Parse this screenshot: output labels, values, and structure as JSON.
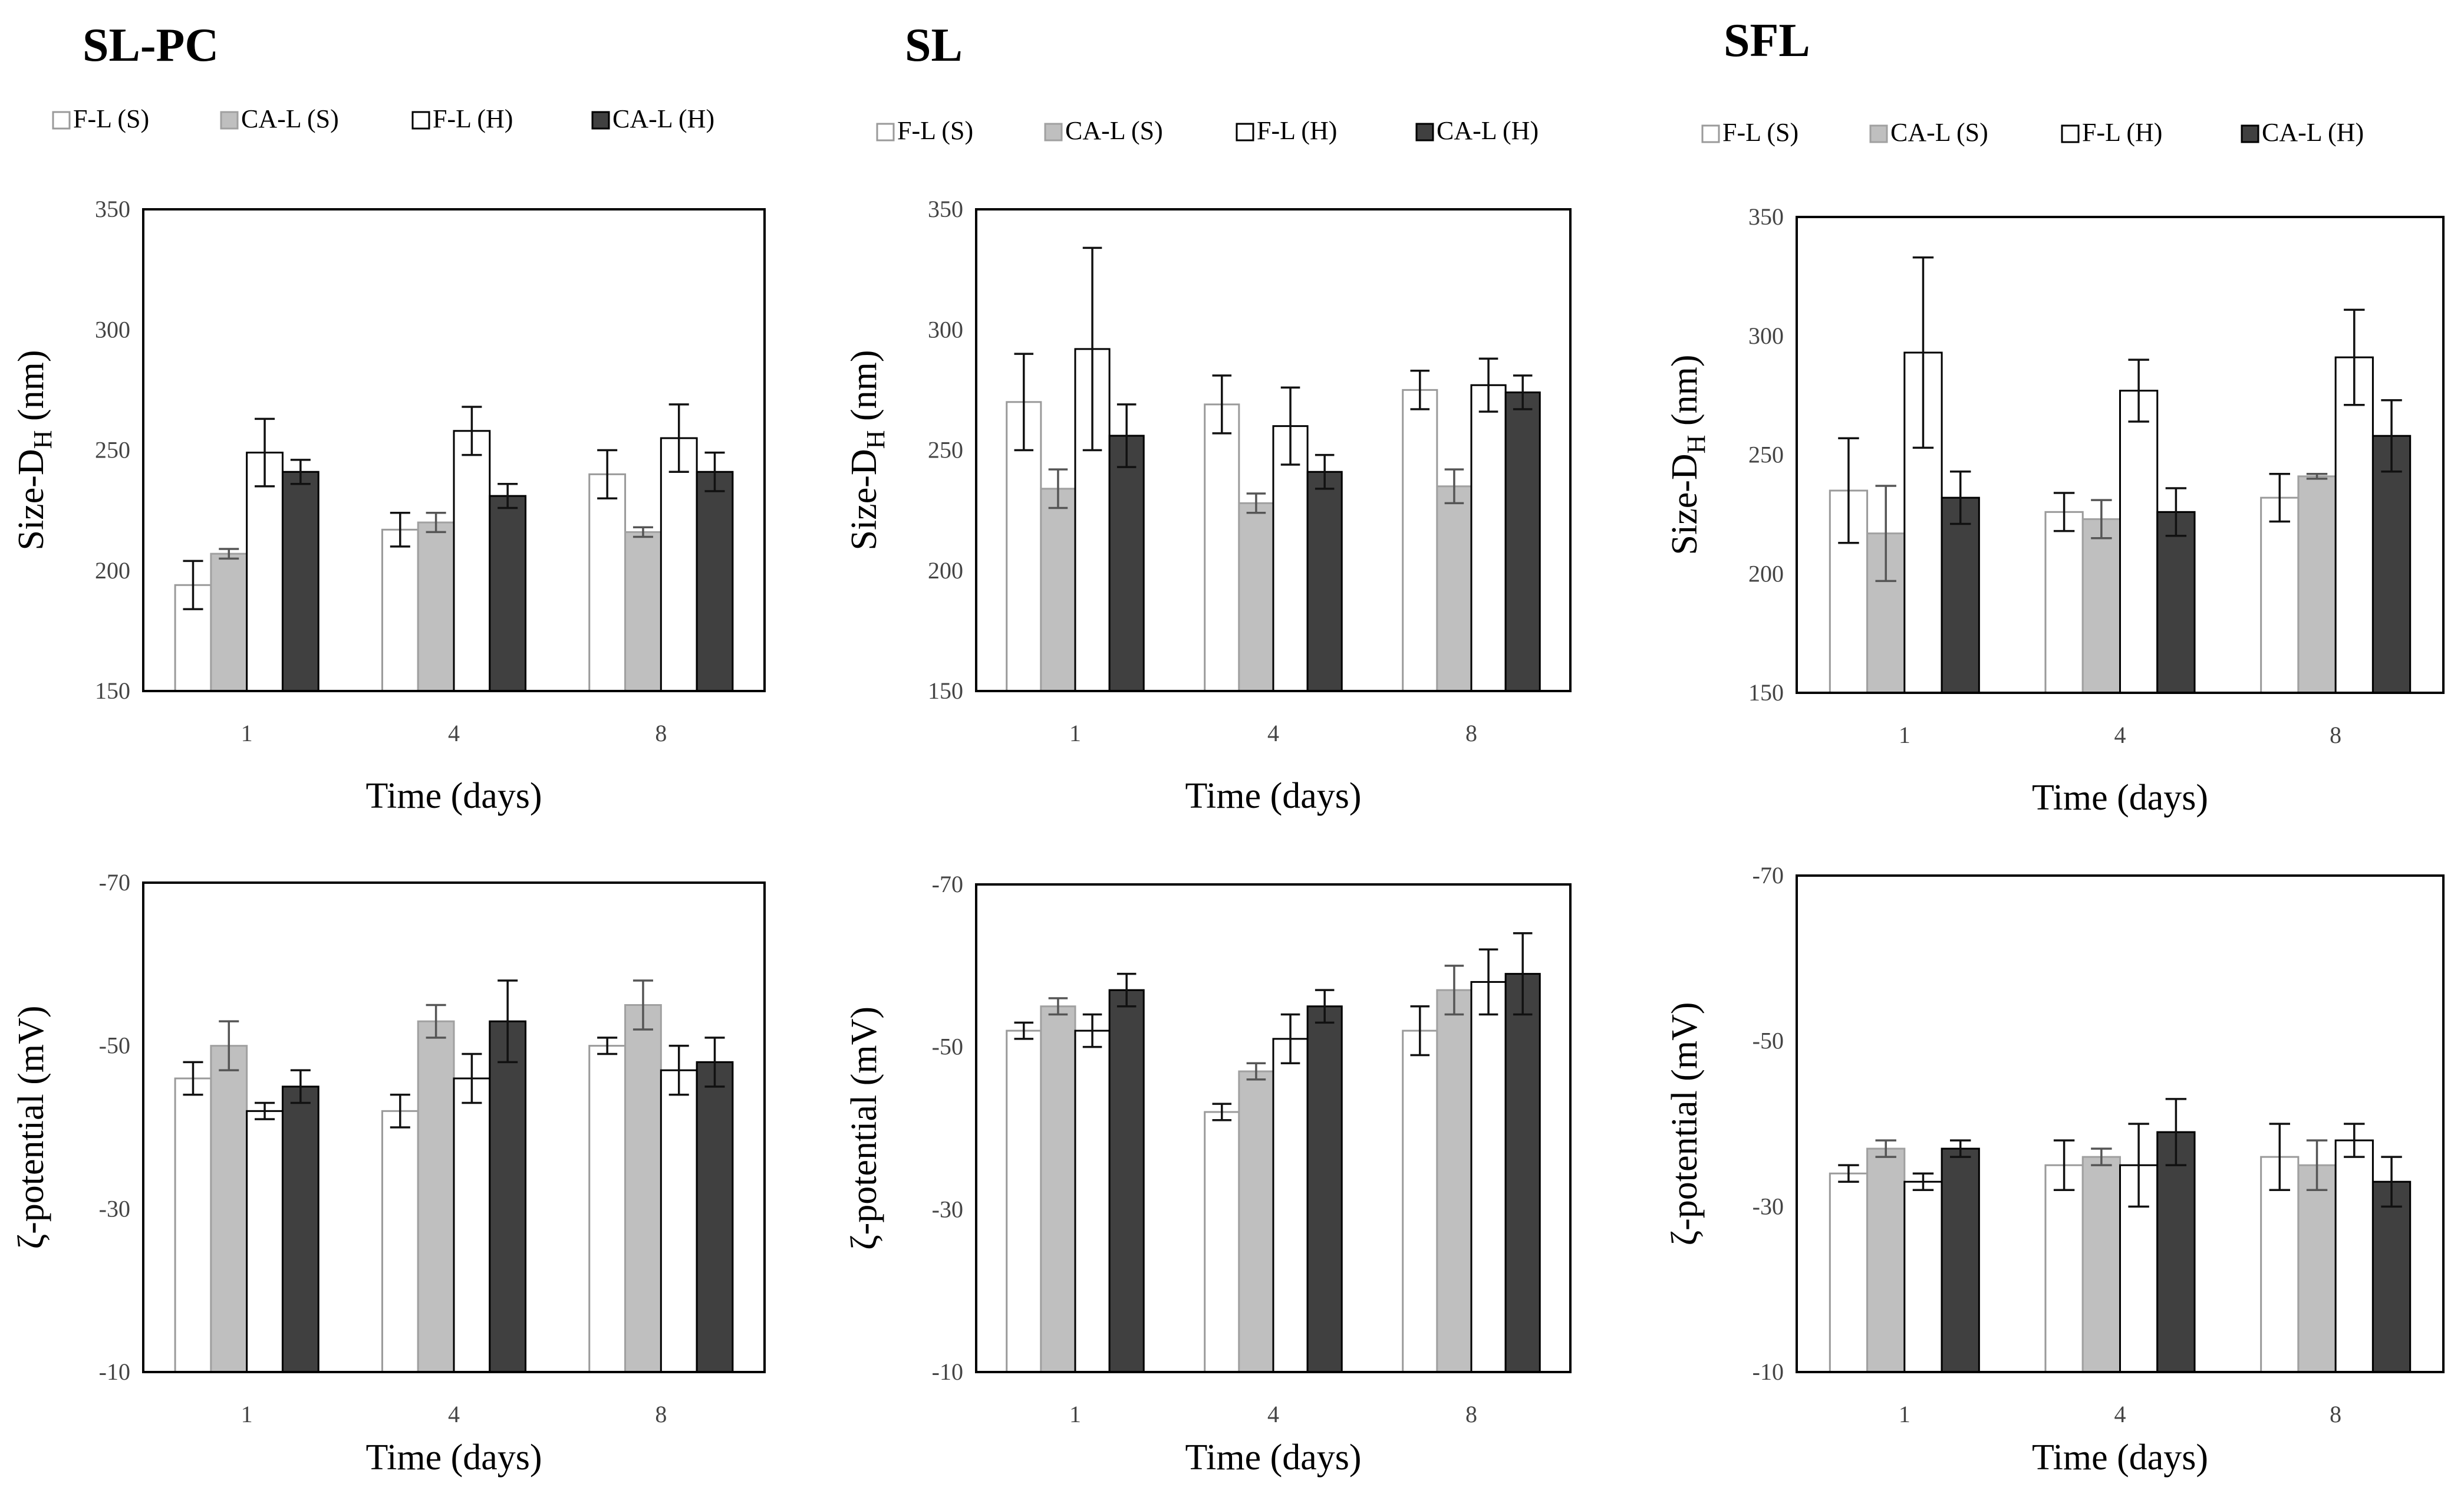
{
  "chart_data": [
    {
      "type": "bar",
      "group": "SL-PC",
      "metric": "size",
      "title": "SL-PC",
      "xlabel": "Time (days)",
      "ylabel": "Size-DH (nm)",
      "categories": [
        "1",
        "4",
        "8"
      ],
      "ylim": [
        150,
        350
      ],
      "yticks": [
        "150",
        "200",
        "250",
        "300",
        "350"
      ],
      "series": [
        {
          "name": "F-L (S)",
          "values": [
            194,
            217,
            240
          ],
          "errors": [
            10,
            7,
            10
          ]
        },
        {
          "name": "CA-L (S)",
          "values": [
            207,
            220,
            216
          ],
          "errors": [
            2,
            4,
            2
          ]
        },
        {
          "name": "F-L (H)",
          "values": [
            249,
            258,
            255
          ],
          "errors": [
            14,
            10,
            14
          ]
        },
        {
          "name": "CA-L (H)",
          "values": [
            241,
            231,
            241
          ],
          "errors": [
            5,
            5,
            8
          ]
        }
      ]
    },
    {
      "type": "bar",
      "group": "SL",
      "metric": "size",
      "title": "SL",
      "xlabel": "Time (days)",
      "ylabel": "Size-DH (nm)",
      "categories": [
        "1",
        "4",
        "8"
      ],
      "ylim": [
        150,
        350
      ],
      "yticks": [
        "150",
        "200",
        "250",
        "300",
        "350"
      ],
      "series": [
        {
          "name": "F-L (S)",
          "values": [
            270,
            269,
            275
          ],
          "errors": [
            20,
            12,
            8
          ]
        },
        {
          "name": "CA-L (S)",
          "values": [
            234,
            228,
            235
          ],
          "errors": [
            8,
            4,
            7
          ]
        },
        {
          "name": "F-L (H)",
          "values": [
            292,
            260,
            277
          ],
          "errors": [
            42,
            16,
            11
          ]
        },
        {
          "name": "CA-L (H)",
          "values": [
            256,
            241,
            274
          ],
          "errors": [
            13,
            7,
            7
          ]
        }
      ]
    },
    {
      "type": "bar",
      "group": "SFL",
      "metric": "size",
      "title": "SFL",
      "xlabel": "Time (days)",
      "ylabel": "Size-DH (nm)",
      "categories": [
        "1",
        "4",
        "8"
      ],
      "ylim": [
        150,
        350
      ],
      "yticks": [
        "150",
        "200",
        "250",
        "300",
        "350"
      ],
      "series": [
        {
          "name": "F-L (S)",
          "values": [
            235,
            226,
            232
          ],
          "errors": [
            22,
            8,
            10
          ]
        },
        {
          "name": "CA-L (S)",
          "values": [
            217,
            223,
            241
          ],
          "errors": [
            20,
            8,
            1
          ]
        },
        {
          "name": "F-L (H)",
          "values": [
            293,
            277,
            291
          ],
          "errors": [
            40,
            13,
            20
          ]
        },
        {
          "name": "CA-L (H)",
          "values": [
            232,
            226,
            258
          ],
          "errors": [
            11,
            10,
            15
          ]
        }
      ]
    },
    {
      "type": "bar",
      "group": "SL-PC",
      "metric": "zeta",
      "xlabel": "Time (days)",
      "ylabel": "ζ-potential (mV)",
      "categories": [
        "1",
        "4",
        "8"
      ],
      "ylim": [
        -10,
        -70
      ],
      "yticks": [
        "-10",
        "-30",
        "-50",
        "-70"
      ],
      "series": [
        {
          "name": "F-L (S)",
          "values": [
            -46,
            -42,
            -50
          ],
          "errors": [
            2,
            2,
            1
          ]
        },
        {
          "name": "CA-L (S)",
          "values": [
            -50,
            -53,
            -55
          ],
          "errors": [
            3,
            2,
            3
          ]
        },
        {
          "name": "F-L (H)",
          "values": [
            -42,
            -46,
            -47
          ],
          "errors": [
            1,
            3,
            3
          ]
        },
        {
          "name": "CA-L (H)",
          "values": [
            -45,
            -53,
            -48
          ],
          "errors": [
            2,
            5,
            3
          ]
        }
      ]
    },
    {
      "type": "bar",
      "group": "SL",
      "metric": "zeta",
      "xlabel": "Time (days)",
      "ylabel": "ζ-potential (mV)",
      "categories": [
        "1",
        "4",
        "8"
      ],
      "ylim": [
        -10,
        -70
      ],
      "yticks": [
        "-10",
        "-30",
        "-50",
        "-70"
      ],
      "series": [
        {
          "name": "F-L (S)",
          "values": [
            -52,
            -42,
            -52
          ],
          "errors": [
            1,
            1,
            3
          ]
        },
        {
          "name": "CA-L (S)",
          "values": [
            -55,
            -47,
            -57
          ],
          "errors": [
            1,
            1,
            3
          ]
        },
        {
          "name": "F-L (H)",
          "values": [
            -52,
            -51,
            -58
          ],
          "errors": [
            2,
            3,
            4
          ]
        },
        {
          "name": "CA-L (H)",
          "values": [
            -57,
            -55,
            -59
          ],
          "errors": [
            2,
            2,
            5
          ]
        }
      ]
    },
    {
      "type": "bar",
      "group": "SFL",
      "metric": "zeta",
      "xlabel": "Time (days)",
      "ylabel": "ζ-potential (mV)",
      "categories": [
        "1",
        "4",
        "8"
      ],
      "ylim": [
        -10,
        -70
      ],
      "yticks": [
        "-10",
        "-30",
        "-50",
        "-70"
      ],
      "series": [
        {
          "name": "F-L (S)",
          "values": [
            -34,
            -35,
            -36
          ],
          "errors": [
            1,
            3,
            4
          ]
        },
        {
          "name": "CA-L (S)",
          "values": [
            -37,
            -36,
            -35
          ],
          "errors": [
            1,
            1,
            3
          ]
        },
        {
          "name": "F-L (H)",
          "values": [
            -33,
            -35,
            -38
          ],
          "errors": [
            1,
            5,
            2
          ]
        },
        {
          "name": "CA-L (H)",
          "values": [
            -37,
            -39,
            -33
          ],
          "errors": [
            1,
            4,
            3
          ]
        }
      ]
    }
  ],
  "legend": [
    {
      "label": "F-L (S)",
      "fill": "#ffffff",
      "stroke": "#9a9a9a"
    },
    {
      "label": "CA-L (S)",
      "fill": "#bfbfbf",
      "stroke": "#a0a0a0"
    },
    {
      "label": "F-L (H)",
      "fill": "#ffffff",
      "stroke": "#000000"
    },
    {
      "label": "CA-L (H)",
      "fill": "#404040",
      "stroke": "#000000"
    }
  ],
  "ylabel_size_main": "Size-D",
  "ylabel_size_sub": "H",
  "ylabel_size_tail": " (nm)"
}
